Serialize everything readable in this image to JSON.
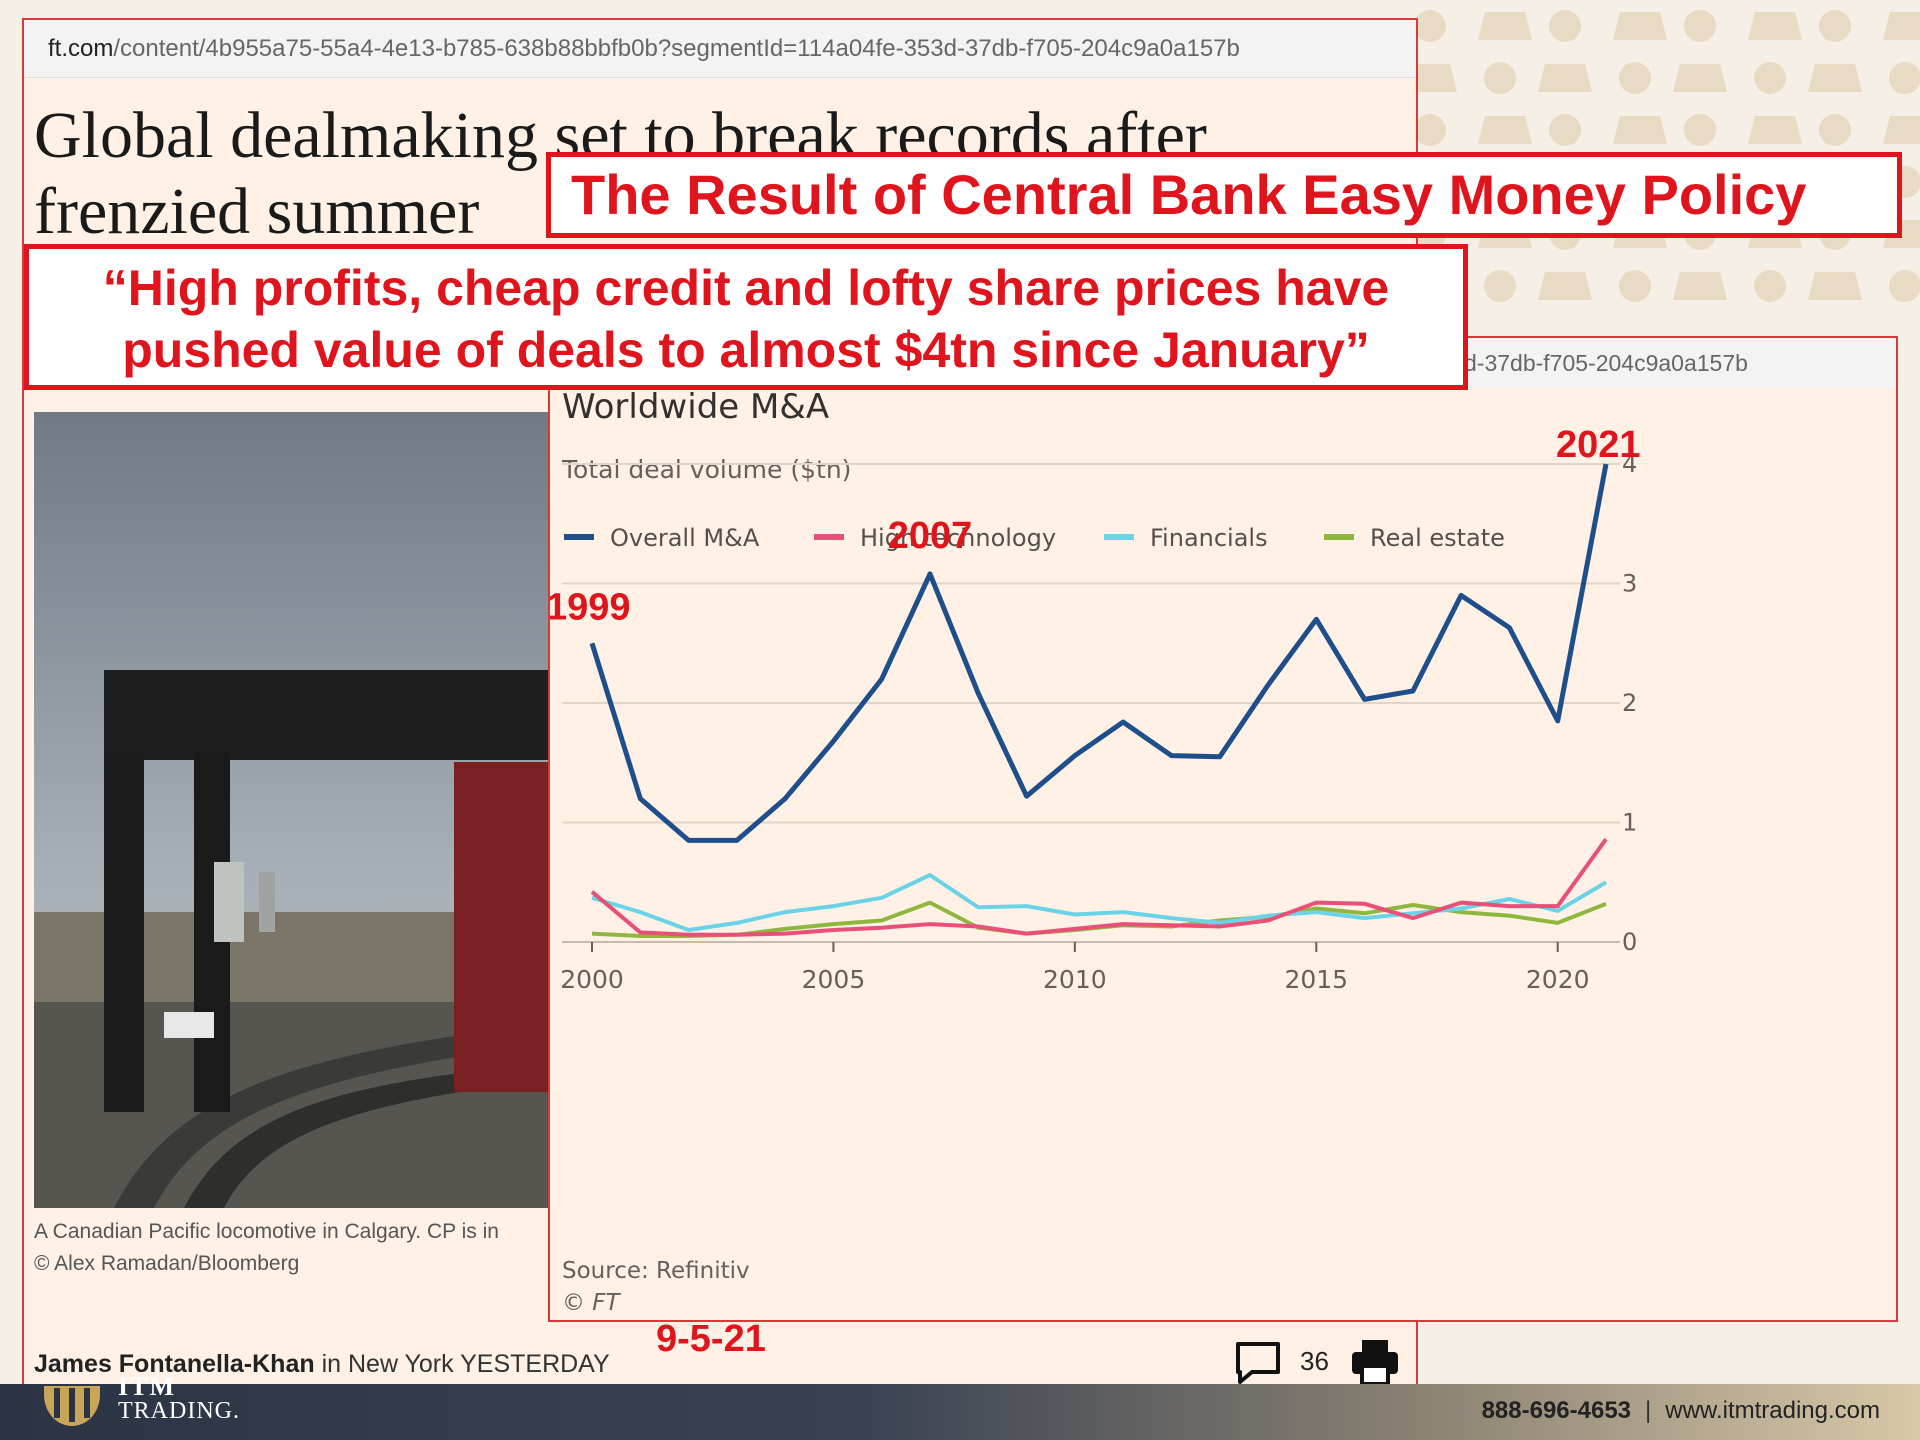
{
  "article": {
    "url_host": "ft.com",
    "url_path": "/content/4b955a75-55a4-4e13-b785-638b88bbfb0b?segmentId=114a04fe-353d-37db-f705-204c9a0a157b",
    "headline_line1": "Global dealmaking set to break records after",
    "headline_line2": "frenzied summer",
    "caption_line1": "A Canadian Pacific locomotive in Calgary. CP is in",
    "caption_line2": "© Alex Ramadan/Bloomberg",
    "author": "James Fontanella-Khan",
    "byline_rest": " in New York YESTERDAY",
    "comment_count": "36"
  },
  "annotations": {
    "title_box": "The Result of Central Bank Easy Money Policy",
    "quote_line1": "“High profits, cheap credit and lofty share prices have",
    "quote_line2": "pushed value of deals to almost $4tn since January”",
    "date": "9-5-21",
    "year_labels": [
      {
        "text": "1999",
        "x": 2000,
        "y": 2.5
      },
      {
        "text": "2007",
        "x": 2007,
        "y": 3.08
      },
      {
        "text": "2021",
        "x": 2021,
        "y": 3.94
      }
    ]
  },
  "chart_url": "d-37db-f705-204c9a0a157b",
  "chart_data": {
    "type": "line",
    "title": "Worldwide M&A",
    "subtitle": "Total deal volume ($tn)",
    "source": "Source: Refinitiv",
    "credit": "© FT",
    "x": [
      2000,
      2001,
      2002,
      2003,
      2004,
      2005,
      2006,
      2007,
      2008,
      2009,
      2010,
      2011,
      2012,
      2013,
      2014,
      2015,
      2016,
      2017,
      2018,
      2019,
      2020,
      2021
    ],
    "xticks": [
      2000,
      2005,
      2010,
      2015,
      2020
    ],
    "yticks": [
      0,
      1,
      2,
      3,
      4
    ],
    "xlim": [
      2000,
      2021
    ],
    "ylim": [
      0,
      4
    ],
    "grid": true,
    "legend_position": "top-left",
    "series": [
      {
        "name": "Overall M&A",
        "color": "#1f4f8a",
        "values": [
          2.5,
          1.2,
          0.85,
          0.85,
          1.2,
          1.68,
          2.2,
          3.08,
          2.08,
          1.22,
          1.56,
          1.84,
          1.56,
          1.55,
          2.15,
          2.7,
          2.03,
          2.1,
          2.9,
          2.63,
          1.85,
          4.0
        ]
      },
      {
        "name": "High technology",
        "color": "#e8507a",
        "values": [
          0.42,
          0.08,
          0.06,
          0.06,
          0.07,
          0.1,
          0.12,
          0.15,
          0.13,
          0.07,
          0.11,
          0.15,
          0.14,
          0.13,
          0.18,
          0.33,
          0.32,
          0.2,
          0.33,
          0.3,
          0.3,
          0.86
        ]
      },
      {
        "name": "Financials",
        "color": "#6ad3e8",
        "values": [
          0.37,
          0.25,
          0.1,
          0.16,
          0.25,
          0.3,
          0.37,
          0.56,
          0.29,
          0.3,
          0.23,
          0.25,
          0.2,
          0.16,
          0.22,
          0.25,
          0.2,
          0.24,
          0.28,
          0.36,
          0.26,
          0.5
        ]
      },
      {
        "name": "Real estate",
        "color": "#8fb73e",
        "values": [
          0.07,
          0.05,
          0.05,
          0.06,
          0.11,
          0.15,
          0.18,
          0.33,
          0.12,
          0.07,
          0.1,
          0.14,
          0.13,
          0.18,
          0.21,
          0.28,
          0.24,
          0.31,
          0.25,
          0.22,
          0.16,
          0.32
        ]
      }
    ]
  },
  "brand": {
    "name_top": "ITM",
    "name": "TRADING.",
    "phone": "888-696-4653",
    "separator": "|",
    "website": "www.itmtrading.com"
  }
}
